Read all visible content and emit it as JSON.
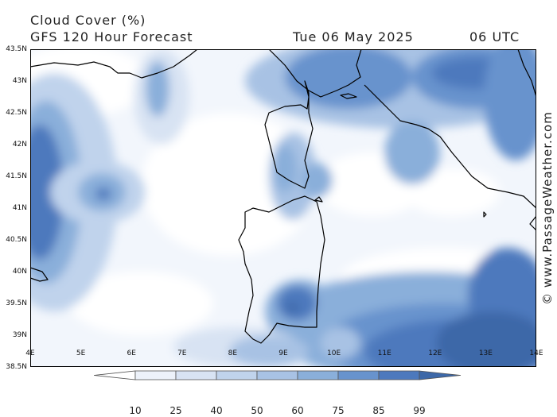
{
  "header": {
    "title": "Cloud Cover (%)",
    "subtitle": "GFS 120 Hour Forecast",
    "date": "Tue 06 May 2025",
    "time": "06 UTC"
  },
  "axes": {
    "lat_labels": [
      "43.5N",
      "43N",
      "42.5N",
      "42N",
      "41.5N",
      "41N",
      "40.5N",
      "40N",
      "39.5N",
      "39N",
      "38.5N"
    ],
    "lon_labels": [
      "4E",
      "5E",
      "6E",
      "7E",
      "8E",
      "9E",
      "10E",
      "11E",
      "12E",
      "13E",
      "14E"
    ]
  },
  "credit": "© www.PassageWeather.com",
  "colorbar": {
    "levels": [
      "10",
      "25",
      "40",
      "50",
      "60",
      "75",
      "85",
      "99"
    ],
    "colors": [
      "#ffffff",
      "#edf2fa",
      "#d8e3f3",
      "#c0d3ec",
      "#a8c2e4",
      "#8aafda",
      "#6893cd",
      "#4d79bd",
      "#3d68a8"
    ]
  },
  "palette": {
    "sea": "#f2f6fc",
    "coast": "#000000"
  }
}
